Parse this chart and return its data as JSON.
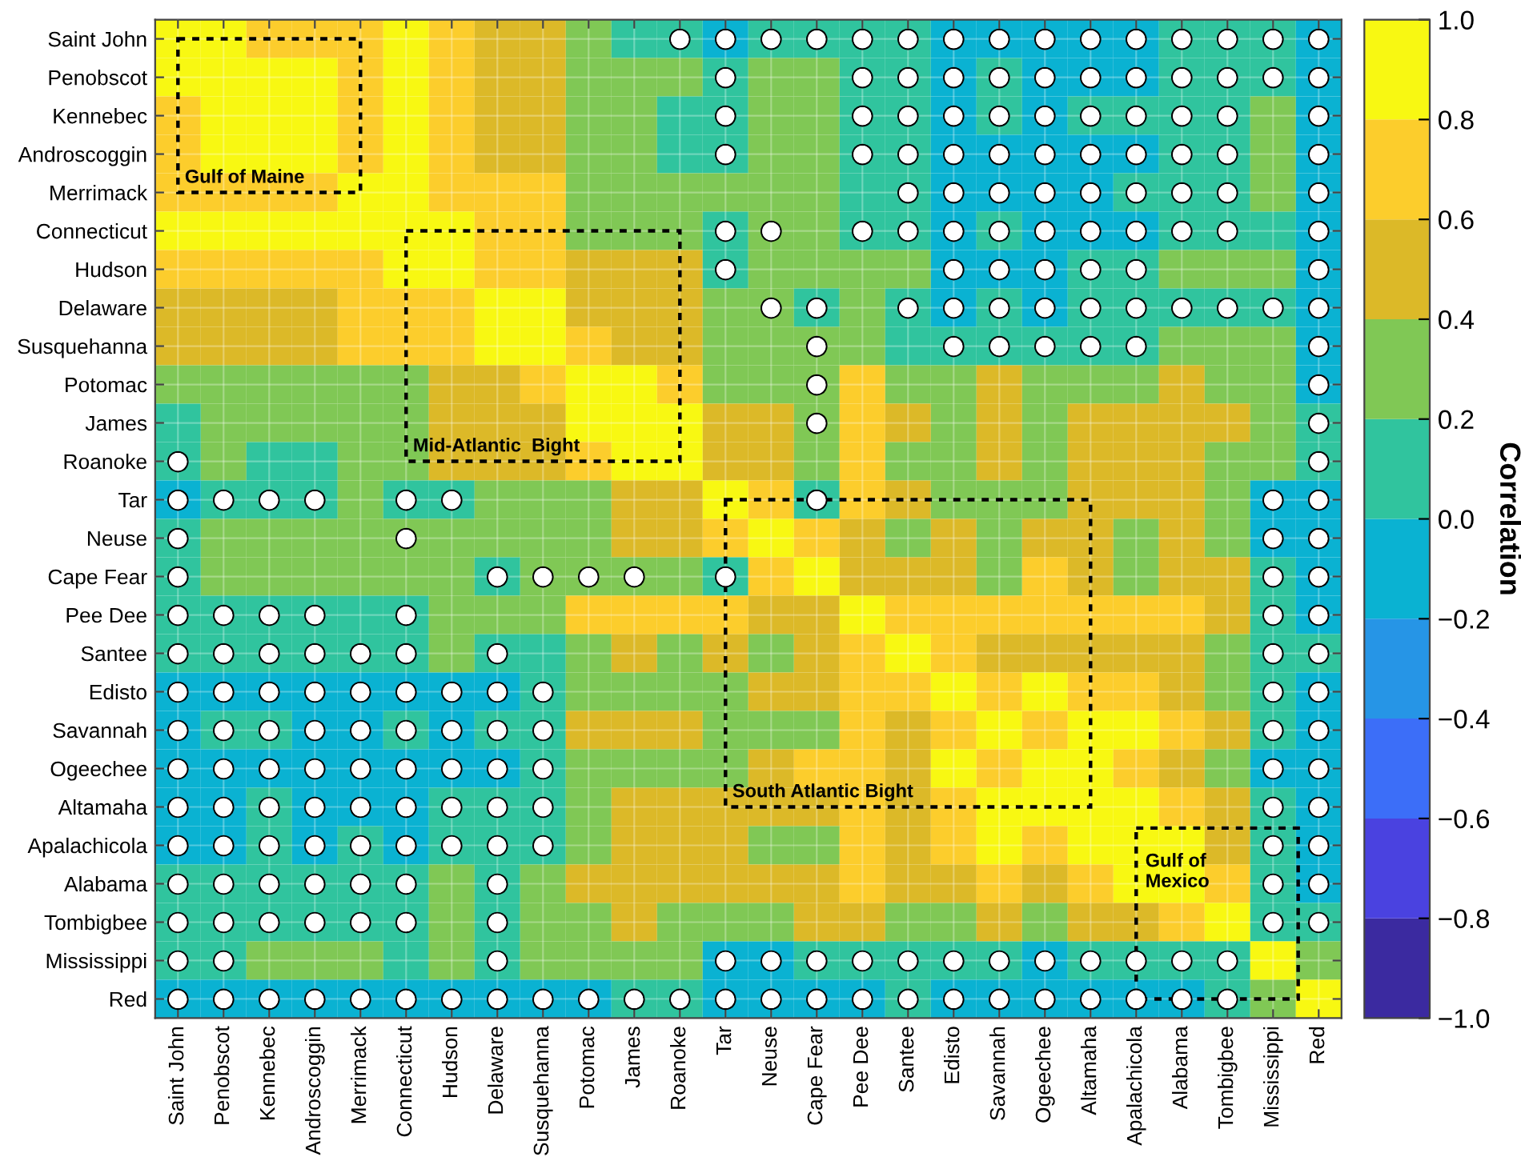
{
  "chart_data": {
    "type": "heatmap",
    "categories": [
      "Saint John",
      "Penobscot",
      "Kennebec",
      "Androscoggin",
      "Merrimack",
      "Connecticut",
      "Hudson",
      "Delaware",
      "Susquehanna",
      "Potomac",
      "James",
      "Roanoke",
      "Tar",
      "Neuse",
      "Cape Fear",
      "Pee Dee",
      "Santee",
      "Edisto",
      "Savannah",
      "Ogeechee",
      "Altamaha",
      "Apalachicola",
      "Alabama",
      "Tombigbee",
      "Mississippi",
      "Red"
    ],
    "y_categories": [
      "Saint John",
      "Penobscot",
      "Kennebec",
      "Androscoggin",
      "Merrimack",
      "Connecticut",
      "Hudson",
      "Delaware",
      "Susquehanna",
      "Potomac",
      "James",
      "Roanoke",
      "Tar",
      "Neuse",
      "Cape Fear",
      "Pee Dee",
      "Santee",
      "Edisto",
      "Savannah",
      "Ogeechee",
      "Altamaha",
      "Apalachicola",
      "Alabama",
      "Tombigbee",
      "Mississippi",
      "Red"
    ],
    "cells": [
      [
        0.9,
        0.9,
        0.7,
        0.7,
        0.7,
        0.9,
        0.7,
        0.5,
        0.5,
        0.3,
        0.1,
        0.1,
        -0.1,
        0.1,
        0.1,
        0.1,
        0.1,
        -0.1,
        -0.1,
        -0.1,
        -0.1,
        -0.1,
        0.1,
        0.1,
        0.1,
        -0.1
      ],
      [
        0.9,
        0.9,
        0.9,
        0.9,
        0.7,
        0.9,
        0.7,
        0.5,
        0.5,
        0.3,
        0.3,
        0.3,
        0.1,
        0.3,
        0.3,
        0.1,
        0.1,
        -0.1,
        0.1,
        -0.1,
        -0.1,
        -0.1,
        0.1,
        0.1,
        0.1,
        -0.1
      ],
      [
        0.7,
        0.9,
        0.9,
        0.9,
        0.7,
        0.9,
        0.7,
        0.5,
        0.5,
        0.3,
        0.3,
        0.1,
        0.1,
        0.3,
        0.3,
        0.1,
        0.1,
        -0.1,
        0.1,
        -0.1,
        0.1,
        0.1,
        0.1,
        0.1,
        0.3,
        -0.1
      ],
      [
        0.7,
        0.9,
        0.9,
        0.9,
        0.7,
        0.9,
        0.7,
        0.5,
        0.5,
        0.3,
        0.3,
        0.1,
        0.1,
        0.3,
        0.3,
        0.1,
        0.1,
        -0.1,
        -0.1,
        -0.1,
        -0.1,
        -0.1,
        0.1,
        0.1,
        0.3,
        -0.1
      ],
      [
        0.7,
        0.7,
        0.7,
        0.7,
        0.9,
        0.9,
        0.7,
        0.7,
        0.7,
        0.3,
        0.3,
        0.3,
        0.3,
        0.3,
        0.3,
        0.1,
        0.1,
        -0.1,
        -0.1,
        -0.1,
        -0.1,
        0.1,
        0.1,
        0.1,
        0.3,
        -0.1
      ],
      [
        0.9,
        0.9,
        0.9,
        0.9,
        0.9,
        0.9,
        0.9,
        0.7,
        0.7,
        0.3,
        0.3,
        0.3,
        0.1,
        0.3,
        0.3,
        0.1,
        0.1,
        -0.1,
        0.1,
        -0.1,
        -0.1,
        -0.1,
        0.1,
        0.1,
        0.1,
        -0.1
      ],
      [
        0.7,
        0.7,
        0.7,
        0.7,
        0.7,
        0.9,
        0.9,
        0.7,
        0.7,
        0.5,
        0.5,
        0.5,
        0.1,
        0.3,
        0.3,
        0.3,
        0.3,
        -0.1,
        -0.1,
        -0.1,
        0.1,
        0.1,
        0.3,
        0.3,
        0.3,
        -0.1
      ],
      [
        0.5,
        0.5,
        0.5,
        0.5,
        0.7,
        0.7,
        0.7,
        0.9,
        0.9,
        0.5,
        0.5,
        0.5,
        0.3,
        0.3,
        0.1,
        0.3,
        0.1,
        -0.1,
        0.1,
        -0.1,
        0.1,
        0.1,
        0.1,
        0.1,
        0.1,
        -0.1
      ],
      [
        0.5,
        0.5,
        0.5,
        0.5,
        0.7,
        0.7,
        0.7,
        0.9,
        0.9,
        0.7,
        0.5,
        0.5,
        0.3,
        0.3,
        0.3,
        0.3,
        0.1,
        0.1,
        0.1,
        0.1,
        0.1,
        0.1,
        0.3,
        0.3,
        0.3,
        -0.1
      ],
      [
        0.3,
        0.3,
        0.3,
        0.3,
        0.3,
        0.3,
        0.5,
        0.5,
        0.7,
        0.9,
        0.9,
        0.7,
        0.3,
        0.3,
        0.3,
        0.7,
        0.3,
        0.3,
        0.5,
        0.3,
        0.3,
        0.3,
        0.5,
        0.3,
        0.3,
        -0.1
      ],
      [
        0.1,
        0.3,
        0.3,
        0.3,
        0.3,
        0.3,
        0.5,
        0.5,
        0.5,
        0.9,
        0.9,
        0.9,
        0.5,
        0.5,
        0.3,
        0.7,
        0.5,
        0.3,
        0.5,
        0.3,
        0.5,
        0.5,
        0.5,
        0.5,
        0.3,
        0.1
      ],
      [
        0.1,
        0.3,
        0.1,
        0.1,
        0.3,
        0.3,
        0.5,
        0.5,
        0.5,
        0.7,
        0.9,
        0.9,
        0.5,
        0.5,
        0.3,
        0.7,
        0.3,
        0.3,
        0.5,
        0.3,
        0.5,
        0.5,
        0.5,
        0.3,
        0.3,
        0.1
      ],
      [
        -0.1,
        0.1,
        0.1,
        0.1,
        0.3,
        0.1,
        0.1,
        0.3,
        0.3,
        0.3,
        0.5,
        0.5,
        0.9,
        0.7,
        0.1,
        0.7,
        0.5,
        0.3,
        0.3,
        0.3,
        0.5,
        0.5,
        0.5,
        0.3,
        -0.1,
        -0.1
      ],
      [
        0.1,
        0.3,
        0.3,
        0.3,
        0.3,
        0.3,
        0.3,
        0.3,
        0.3,
        0.3,
        0.5,
        0.5,
        0.7,
        0.9,
        0.7,
        0.5,
        0.3,
        0.5,
        0.3,
        0.5,
        0.5,
        0.3,
        0.5,
        0.3,
        -0.1,
        -0.1
      ],
      [
        0.1,
        0.3,
        0.3,
        0.3,
        0.3,
        0.3,
        0.3,
        0.1,
        0.3,
        0.3,
        0.3,
        0.3,
        0.1,
        0.7,
        0.9,
        0.5,
        0.5,
        0.5,
        0.3,
        0.7,
        0.5,
        0.3,
        0.5,
        0.5,
        0.1,
        -0.1
      ],
      [
        0.1,
        0.1,
        0.1,
        0.1,
        0.1,
        0.1,
        0.3,
        0.3,
        0.3,
        0.7,
        0.7,
        0.7,
        0.7,
        0.5,
        0.5,
        0.9,
        0.7,
        0.7,
        0.7,
        0.7,
        0.7,
        0.7,
        0.7,
        0.5,
        0.1,
        -0.1
      ],
      [
        0.1,
        0.1,
        0.1,
        0.1,
        0.1,
        0.1,
        0.3,
        0.1,
        0.1,
        0.3,
        0.5,
        0.3,
        0.5,
        0.3,
        0.5,
        0.7,
        0.9,
        0.7,
        0.5,
        0.5,
        0.5,
        0.5,
        0.5,
        0.3,
        0.1,
        0.1
      ],
      [
        -0.1,
        -0.1,
        -0.1,
        -0.1,
        -0.1,
        -0.1,
        -0.1,
        -0.1,
        0.1,
        0.3,
        0.3,
        0.3,
        0.3,
        0.5,
        0.5,
        0.7,
        0.7,
        0.9,
        0.7,
        0.9,
        0.7,
        0.7,
        0.5,
        0.3,
        0.1,
        -0.1
      ],
      [
        -0.1,
        0.1,
        0.1,
        -0.1,
        -0.1,
        0.1,
        -0.1,
        0.1,
        0.1,
        0.5,
        0.5,
        0.5,
        0.3,
        0.3,
        0.3,
        0.7,
        0.5,
        0.7,
        0.9,
        0.7,
        0.9,
        0.9,
        0.7,
        0.5,
        0.1,
        -0.1
      ],
      [
        -0.1,
        -0.1,
        -0.1,
        -0.1,
        -0.1,
        -0.1,
        -0.1,
        -0.1,
        0.1,
        0.3,
        0.3,
        0.3,
        0.3,
        0.5,
        0.7,
        0.7,
        0.5,
        0.9,
        0.7,
        0.9,
        0.9,
        0.7,
        0.5,
        0.3,
        -0.1,
        -0.1
      ],
      [
        -0.1,
        -0.1,
        0.1,
        -0.1,
        -0.1,
        -0.1,
        0.1,
        0.1,
        0.1,
        0.3,
        0.5,
        0.5,
        0.5,
        0.5,
        0.5,
        0.7,
        0.5,
        0.7,
        0.9,
        0.9,
        0.9,
        0.9,
        0.7,
        0.5,
        0.1,
        -0.1
      ],
      [
        -0.1,
        -0.1,
        0.1,
        -0.1,
        0.1,
        -0.1,
        0.1,
        0.1,
        0.1,
        0.3,
        0.5,
        0.5,
        0.5,
        0.3,
        0.3,
        0.7,
        0.5,
        0.7,
        0.9,
        0.7,
        0.9,
        0.9,
        0.9,
        0.5,
        0.1,
        -0.1
      ],
      [
        0.1,
        0.1,
        0.1,
        0.1,
        0.1,
        0.1,
        0.3,
        0.1,
        0.3,
        0.5,
        0.5,
        0.5,
        0.5,
        0.5,
        0.5,
        0.7,
        0.5,
        0.5,
        0.7,
        0.5,
        0.7,
        0.9,
        0.9,
        0.7,
        0.1,
        -0.1
      ],
      [
        0.1,
        0.1,
        0.1,
        0.1,
        0.1,
        0.1,
        0.3,
        0.1,
        0.3,
        0.3,
        0.5,
        0.3,
        0.3,
        0.3,
        0.5,
        0.5,
        0.3,
        0.3,
        0.5,
        0.3,
        0.5,
        0.5,
        0.7,
        0.9,
        0.1,
        0.1
      ],
      [
        0.1,
        0.1,
        0.3,
        0.3,
        0.3,
        0.1,
        0.3,
        0.1,
        0.3,
        0.3,
        0.3,
        0.3,
        -0.1,
        -0.1,
        0.1,
        0.1,
        0.1,
        0.1,
        0.1,
        -0.1,
        0.1,
        0.1,
        0.1,
        0.1,
        0.9,
        0.3
      ],
      [
        -0.1,
        -0.1,
        -0.1,
        -0.1,
        -0.1,
        -0.1,
        -0.1,
        -0.1,
        -0.1,
        -0.1,
        0.1,
        0.1,
        -0.1,
        -0.1,
        -0.1,
        -0.1,
        0.1,
        -0.1,
        -0.1,
        -0.1,
        -0.1,
        -0.1,
        -0.1,
        0.1,
        0.3,
        0.9
      ]
    ],
    "cell_labels": [
      [
        null,
        null,
        null,
        null,
        null,
        null,
        null,
        null,
        null,
        null,
        null,
        "●",
        "●",
        "●",
        "●",
        "●",
        "●",
        "●",
        "●",
        "●",
        "●",
        "●",
        "●",
        "●",
        "●",
        "●"
      ],
      [
        null,
        null,
        null,
        null,
        null,
        null,
        null,
        null,
        null,
        null,
        null,
        null,
        "●",
        null,
        null,
        "●",
        "●",
        "●",
        "●",
        "●",
        "●",
        "●",
        "●",
        "●",
        "●",
        "●"
      ],
      [
        null,
        null,
        null,
        null,
        null,
        null,
        null,
        null,
        null,
        null,
        null,
        null,
        "●",
        null,
        null,
        "●",
        "●",
        "●",
        "●",
        "●",
        "●",
        "●",
        "●",
        "●",
        null,
        "●"
      ],
      [
        null,
        null,
        null,
        null,
        null,
        null,
        null,
        null,
        null,
        null,
        null,
        null,
        "●",
        null,
        null,
        "●",
        "●",
        "●",
        "●",
        "●",
        "●",
        "●",
        "●",
        "●",
        null,
        "●"
      ],
      [
        null,
        null,
        null,
        null,
        null,
        null,
        null,
        null,
        null,
        null,
        null,
        null,
        null,
        null,
        null,
        null,
        "●",
        "●",
        "●",
        "●",
        "●",
        "●",
        "●",
        "●",
        null,
        "●"
      ],
      [
        null,
        null,
        null,
        null,
        null,
        null,
        null,
        null,
        null,
        null,
        null,
        null,
        "●",
        "●",
        null,
        "●",
        "●",
        "●",
        "●",
        "●",
        "●",
        "●",
        "●",
        "●",
        null,
        "●"
      ],
      [
        null,
        null,
        null,
        null,
        null,
        null,
        null,
        null,
        null,
        null,
        null,
        null,
        "●",
        null,
        null,
        null,
        null,
        "●",
        "●",
        "●",
        "●",
        "●",
        null,
        null,
        null,
        "●"
      ],
      [
        null,
        null,
        null,
        null,
        null,
        null,
        null,
        null,
        null,
        null,
        null,
        null,
        null,
        "●",
        "●",
        null,
        "●",
        "●",
        "●",
        "●",
        "●",
        "●",
        "●",
        "●",
        "●",
        "●"
      ],
      [
        null,
        null,
        null,
        null,
        null,
        null,
        null,
        null,
        null,
        null,
        null,
        null,
        null,
        null,
        "●",
        null,
        null,
        "●",
        "●",
        "●",
        "●",
        "●",
        null,
        null,
        null,
        "●"
      ],
      [
        null,
        null,
        null,
        null,
        null,
        null,
        null,
        null,
        null,
        null,
        null,
        null,
        null,
        null,
        "●",
        null,
        null,
        null,
        null,
        null,
        null,
        null,
        null,
        null,
        null,
        "●"
      ],
      [
        null,
        null,
        null,
        null,
        null,
        null,
        null,
        null,
        null,
        null,
        null,
        null,
        null,
        null,
        "●",
        null,
        null,
        null,
        null,
        null,
        null,
        null,
        null,
        null,
        null,
        "●"
      ],
      [
        "●",
        null,
        null,
        null,
        null,
        null,
        null,
        null,
        null,
        null,
        null,
        null,
        null,
        null,
        null,
        null,
        null,
        null,
        null,
        null,
        null,
        null,
        null,
        null,
        null,
        "●"
      ],
      [
        "●",
        "●",
        "●",
        "●",
        null,
        "●",
        "●",
        null,
        null,
        null,
        null,
        null,
        null,
        null,
        "●",
        null,
        null,
        null,
        null,
        null,
        null,
        null,
        null,
        null,
        "●",
        "●"
      ],
      [
        "●",
        null,
        null,
        null,
        null,
        "●",
        null,
        null,
        null,
        null,
        null,
        null,
        null,
        null,
        null,
        null,
        null,
        null,
        null,
        null,
        null,
        null,
        null,
        null,
        "●",
        "●"
      ],
      [
        "●",
        null,
        null,
        null,
        null,
        null,
        null,
        "●",
        "●",
        "●",
        "●",
        null,
        "●",
        null,
        null,
        null,
        null,
        null,
        null,
        null,
        null,
        null,
        null,
        null,
        "●",
        "●"
      ],
      [
        "●",
        "●",
        "●",
        "●",
        null,
        "●",
        null,
        null,
        null,
        null,
        null,
        null,
        null,
        null,
        null,
        null,
        null,
        null,
        null,
        null,
        null,
        null,
        null,
        null,
        "●",
        "●"
      ],
      [
        "●",
        "●",
        "●",
        "●",
        "●",
        "●",
        null,
        "●",
        null,
        null,
        null,
        null,
        null,
        null,
        null,
        null,
        null,
        null,
        null,
        null,
        null,
        null,
        null,
        null,
        "●",
        "●"
      ],
      [
        "●",
        "●",
        "●",
        "●",
        "●",
        "●",
        "●",
        "●",
        "●",
        null,
        null,
        null,
        null,
        null,
        null,
        null,
        null,
        null,
        null,
        null,
        null,
        null,
        null,
        null,
        "●",
        "●"
      ],
      [
        "●",
        "●",
        "●",
        "●",
        "●",
        "●",
        "●",
        "●",
        "●",
        null,
        null,
        null,
        null,
        null,
        null,
        null,
        null,
        null,
        null,
        null,
        null,
        null,
        null,
        null,
        "●",
        "●"
      ],
      [
        "●",
        "●",
        "●",
        "●",
        "●",
        "●",
        "●",
        "●",
        "●",
        null,
        null,
        null,
        null,
        null,
        null,
        null,
        null,
        null,
        null,
        null,
        null,
        null,
        null,
        null,
        "●",
        "●"
      ],
      [
        "●",
        "●",
        "●",
        "●",
        "●",
        "●",
        "●",
        "●",
        "●",
        null,
        null,
        null,
        null,
        null,
        null,
        null,
        null,
        null,
        null,
        null,
        null,
        null,
        null,
        null,
        "●",
        "●"
      ],
      [
        "●",
        "●",
        "●",
        "●",
        "●",
        "●",
        "●",
        "●",
        "●",
        null,
        null,
        null,
        null,
        null,
        null,
        null,
        null,
        null,
        null,
        null,
        null,
        null,
        null,
        null,
        "●",
        "●"
      ],
      [
        "●",
        "●",
        "●",
        "●",
        "●",
        "●",
        null,
        "●",
        null,
        null,
        null,
        null,
        null,
        null,
        null,
        null,
        null,
        null,
        null,
        null,
        null,
        null,
        null,
        null,
        "●",
        "●"
      ],
      [
        "●",
        "●",
        "●",
        "●",
        "●",
        "●",
        null,
        "●",
        null,
        null,
        null,
        null,
        null,
        null,
        null,
        null,
        null,
        null,
        null,
        null,
        null,
        null,
        null,
        null,
        "●",
        "●"
      ],
      [
        "●",
        "●",
        null,
        null,
        null,
        null,
        null,
        "●",
        null,
        null,
        null,
        null,
        "●",
        "●",
        "●",
        "●",
        "●",
        "●",
        "●",
        "●",
        "●",
        "●",
        "●",
        "●",
        null,
        null
      ],
      [
        "●",
        "●",
        "●",
        "●",
        "●",
        "●",
        "●",
        "●",
        "●",
        "●",
        "●",
        "●",
        "●",
        "●",
        "●",
        "●",
        "●",
        "●",
        "●",
        "●",
        "●",
        "●",
        "●",
        "●",
        null,
        null
      ]
    ],
    "clim": [
      -1.0,
      1.0
    ],
    "cticks": [
      {
        "value": -1.0,
        "label": "−1.0"
      },
      {
        "value": -0.8,
        "label": "−0.8"
      },
      {
        "value": -0.6,
        "label": "−0.6"
      },
      {
        "value": -0.4,
        "label": "−0.4"
      },
      {
        "value": -0.2,
        "label": "−0.2"
      },
      {
        "value": 0.0,
        "label": "0.0"
      },
      {
        "value": 0.2,
        "label": "0.2"
      },
      {
        "value": 0.4,
        "label": "0.4"
      },
      {
        "value": 0.6,
        "label": "0.6"
      },
      {
        "value": 0.8,
        "label": "0.8"
      },
      {
        "value": 1.0,
        "label": "1.0"
      }
    ],
    "clabel": "Correlation",
    "grid": true,
    "annotations": [
      "Gulf of Maine",
      "Mid-Atlantic  Bight",
      "South Atlantic Bight",
      "Gulf of\nMexico"
    ]
  }
}
